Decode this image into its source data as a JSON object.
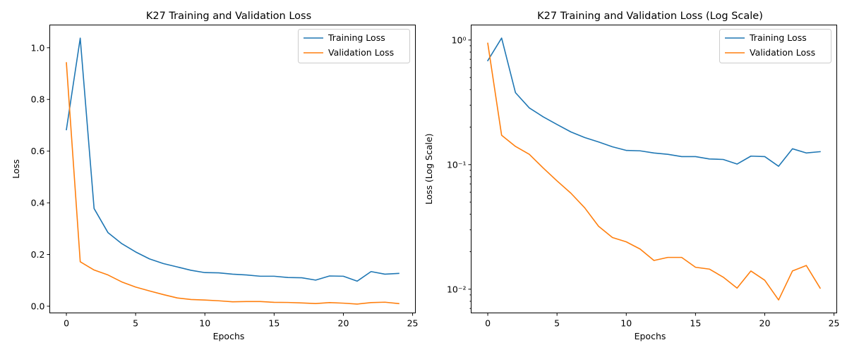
{
  "chart_data": [
    {
      "type": "line",
      "title": "K27 Training and Validation Loss",
      "xlabel": "Epochs",
      "ylabel": "Loss",
      "yscale": "linear",
      "xlim": [
        -1.2,
        25.2
      ],
      "ylim": [
        -0.026,
        1.088
      ],
      "grid": false,
      "legend_position": "top-right",
      "x": [
        0,
        1,
        2,
        3,
        4,
        5,
        6,
        7,
        8,
        9,
        10,
        11,
        12,
        13,
        14,
        15,
        16,
        17,
        18,
        19,
        20,
        21,
        22,
        23,
        24
      ],
      "x_ticks": [
        0,
        5,
        10,
        15,
        20,
        25
      ],
      "x_tick_labels": [
        "0",
        "5",
        "10",
        "15",
        "20",
        "25"
      ],
      "y_ticks": [
        0.0,
        0.2,
        0.4,
        0.6,
        0.8,
        1.0
      ],
      "y_tick_labels": [
        "0.0",
        "0.2",
        "0.4",
        "0.6",
        "0.8",
        "1.0"
      ],
      "series": [
        {
          "name": "Training Loss",
          "color": "#1f77b4",
          "values": [
            0.683,
            1.037,
            0.378,
            0.285,
            0.242,
            0.21,
            0.183,
            0.165,
            0.152,
            0.139,
            0.13,
            0.129,
            0.124,
            0.121,
            0.116,
            0.116,
            0.111,
            0.11,
            0.101,
            0.117,
            0.116,
            0.097,
            0.134,
            0.124,
            0.127
          ]
        },
        {
          "name": "Validation Loss",
          "color": "#ff7f0e",
          "values": [
            0.942,
            0.172,
            0.14,
            0.121,
            0.094,
            0.074,
            0.059,
            0.045,
            0.032,
            0.026,
            0.024,
            0.021,
            0.017,
            0.018,
            0.018,
            0.015,
            0.0145,
            0.0125,
            0.0102,
            0.014,
            0.0118,
            0.0082,
            0.014,
            0.0155,
            0.0102
          ]
        }
      ]
    },
    {
      "type": "line",
      "title": "K27 Training and Validation Loss (Log Scale)",
      "xlabel": "Epochs",
      "ylabel": "Loss (Log Scale)",
      "yscale": "log",
      "xlim": [
        -1.2,
        25.2
      ],
      "ylim": [
        0.00645,
        1.32
      ],
      "grid": false,
      "legend_position": "top-right",
      "x": [
        0,
        1,
        2,
        3,
        4,
        5,
        6,
        7,
        8,
        9,
        10,
        11,
        12,
        13,
        14,
        15,
        16,
        17,
        18,
        19,
        20,
        21,
        22,
        23,
        24
      ],
      "x_ticks": [
        0,
        5,
        10,
        15,
        20,
        25
      ],
      "x_tick_labels": [
        "0",
        "5",
        "10",
        "15",
        "20",
        "25"
      ],
      "y_ticks": [
        0.01,
        0.1,
        1
      ],
      "y_tick_labels": [
        "10⁻²",
        "10⁻¹",
        "10⁰"
      ],
      "series": [
        {
          "name": "Training Loss",
          "color": "#1f77b4",
          "values": [
            0.683,
            1.037,
            0.378,
            0.285,
            0.242,
            0.21,
            0.183,
            0.165,
            0.152,
            0.139,
            0.13,
            0.129,
            0.124,
            0.121,
            0.116,
            0.116,
            0.111,
            0.11,
            0.101,
            0.117,
            0.116,
            0.097,
            0.134,
            0.124,
            0.127
          ]
        },
        {
          "name": "Validation Loss",
          "color": "#ff7f0e",
          "values": [
            0.942,
            0.172,
            0.14,
            0.121,
            0.094,
            0.074,
            0.059,
            0.045,
            0.032,
            0.026,
            0.024,
            0.021,
            0.017,
            0.018,
            0.018,
            0.015,
            0.0145,
            0.0125,
            0.0102,
            0.014,
            0.0118,
            0.0082,
            0.014,
            0.0155,
            0.0102
          ]
        }
      ]
    }
  ]
}
